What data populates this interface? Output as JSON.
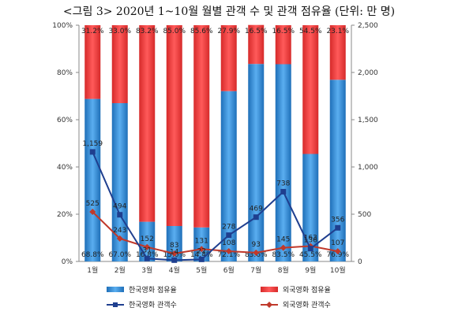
{
  "chart_data": {
    "type": "bar",
    "title": "<그림 3> 2020년 1~10월 월별 관객 수 및 관객 점유율 (단위: 만 명)",
    "categories": [
      "1월",
      "2월",
      "3월",
      "4월",
      "5월",
      "6월",
      "7월",
      "8월",
      "9월",
      "10월"
    ],
    "y_left_ticks": [
      "0%",
      "20%",
      "40%",
      "60%",
      "80%",
      "100%"
    ],
    "y_right_ticks": [
      "0",
      "500",
      "1,000",
      "1,500",
      "2,000",
      "2,500"
    ],
    "y_left_range": [
      0,
      100
    ],
    "y_right_range": [
      0,
      2500
    ],
    "series": [
      {
        "name": "한국영화 점유율",
        "kind": "stacked-bar",
        "color": "#3a8fd6",
        "values": [
          68.8,
          67.0,
          16.8,
          15.0,
          14.4,
          72.1,
          83.6,
          83.5,
          45.5,
          76.9
        ],
        "labels": [
          "68.8%",
          "67.0%",
          "16.8%",
          "15.0%",
          "14.4%",
          "72.1%",
          "83.6%",
          "83.5%",
          "45.5%",
          "76.9%"
        ]
      },
      {
        "name": "외국영화 점유율",
        "kind": "stacked-bar",
        "color": "#ee3c3c",
        "values": [
          31.2,
          33.0,
          83.2,
          85.0,
          85.6,
          27.9,
          16.5,
          16.5,
          54.5,
          23.1
        ],
        "labels": [
          "31.2%",
          "33.0%",
          "83.2%",
          "85.0%",
          "85.6%",
          "27.9%",
          "16.5%",
          "16.5%",
          "54.5%",
          "23.1%"
        ]
      },
      {
        "name": "한국영화 관객수",
        "kind": "line",
        "color": "#1f3f8f",
        "marker": "square",
        "values": [
          1159,
          494,
          31,
          14,
          22,
          278,
          469,
          738,
          136,
          356
        ],
        "labels": [
          "1,159",
          "494",
          "31",
          "14",
          "22",
          "278",
          "469",
          "738",
          "136",
          "356"
        ]
      },
      {
        "name": "외국영화 관객수",
        "kind": "line",
        "color": "#c0392b",
        "marker": "diamond",
        "values": [
          525,
          243,
          152,
          83,
          131,
          108,
          93,
          145,
          163,
          107
        ],
        "labels": [
          "525",
          "243",
          "152",
          "83",
          "131",
          "108",
          "93",
          "145",
          "163",
          "107"
        ]
      }
    ],
    "legend_position": "bottom",
    "grid": false
  }
}
